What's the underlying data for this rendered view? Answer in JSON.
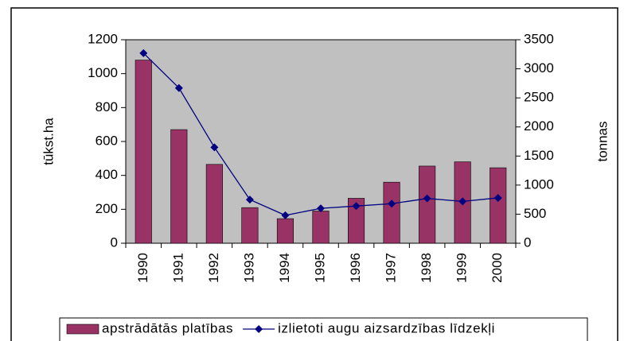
{
  "chart_data": {
    "type": "bar-line",
    "categories": [
      "1990",
      "1991",
      "1992",
      "1993",
      "1994",
      "1995",
      "1996",
      "1997",
      "1998",
      "1999",
      "2000"
    ],
    "series": [
      {
        "name": "apstrādātās platības",
        "color": "#993366",
        "type": "bar",
        "values": [
          1080,
          670,
          465,
          210,
          145,
          190,
          265,
          360,
          455,
          480,
          445
        ]
      },
      {
        "name": "izlietoti augu aizsardzības līdzekļi",
        "color": "#000080",
        "type": "line",
        "axis": "y2",
        "values": [
          3270,
          2670,
          1650,
          750,
          480,
          600,
          640,
          680,
          770,
          720,
          780
        ]
      }
    ],
    "ylabel": "tūkst.ha",
    "y2label": "tonnas",
    "ylim": [
      0,
      1200
    ],
    "yticks": [
      0,
      200,
      400,
      600,
      800,
      1000,
      1200
    ],
    "y2lim": [
      0,
      3500
    ],
    "y2ticks": [
      0,
      500,
      1000,
      1500,
      2000,
      2500,
      3000,
      3500
    ],
    "grid": false,
    "legend": "bottom",
    "plot_background": "#c0c0c0"
  }
}
